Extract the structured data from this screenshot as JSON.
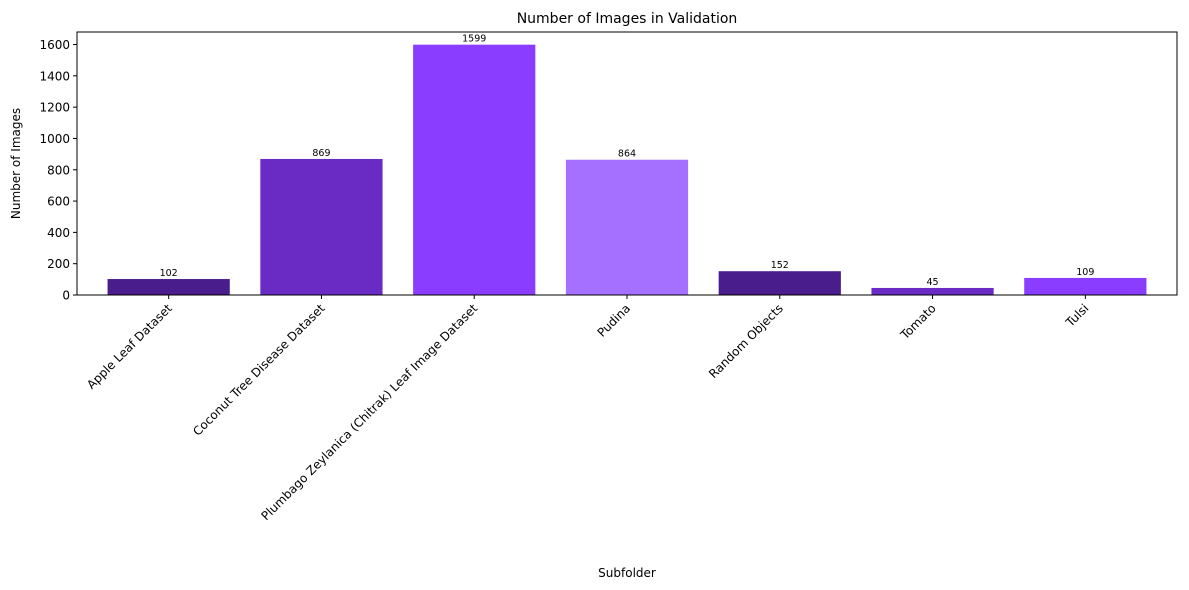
{
  "chart_data": {
    "type": "bar",
    "title": "Number of Images in Validation",
    "xlabel": "Subfolder",
    "ylabel": "Number of Images",
    "categories": [
      "Apple Leaf Dataset",
      "Coconut Tree Disease Dataset",
      "Plumbago Zeylanica (Chitrak) Leaf Image Dataset",
      "Pudina",
      "Random Objects",
      "Tomato",
      "Tulsi"
    ],
    "values": [
      102,
      869,
      1599,
      864,
      152,
      45,
      109
    ],
    "data_labels": [
      "102",
      "869",
      "1599",
      "864",
      "152",
      "45",
      "109"
    ],
    "bar_colors": [
      "#4a1d8c",
      "#6a2ac4",
      "#8a3cff",
      "#a56fff",
      "#4a1d8c",
      "#6a2ac4",
      "#8a3cff"
    ],
    "ylim": [
      0,
      1680
    ],
    "yticks": [
      0,
      200,
      400,
      600,
      800,
      1000,
      1200,
      1400,
      1600
    ],
    "ytick_labels": [
      "0",
      "200",
      "400",
      "600",
      "800",
      "1000",
      "1200",
      "1400",
      "1600"
    ],
    "grid": false,
    "legend": "none"
  }
}
